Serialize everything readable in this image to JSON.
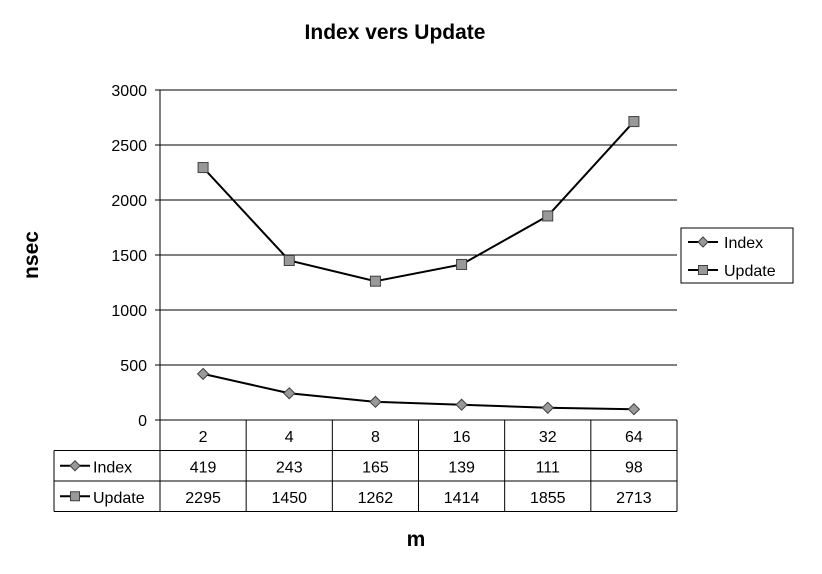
{
  "chart_data": {
    "type": "line",
    "title": "Index vers Update",
    "xlabel": "m",
    "ylabel": "nsec",
    "categories": [
      "2",
      "4",
      "8",
      "16",
      "32",
      "64"
    ],
    "ylim": [
      0,
      3000
    ],
    "yticks": [
      0,
      500,
      1000,
      1500,
      2000,
      2500,
      3000
    ],
    "grid": true,
    "legend_position": "right",
    "data_table": true,
    "series": [
      {
        "name": "Index",
        "marker": "diamond",
        "values": [
          419,
          243,
          165,
          139,
          111,
          98
        ]
      },
      {
        "name": "Update",
        "marker": "square",
        "values": [
          2295,
          1450,
          1262,
          1414,
          1855,
          2713
        ]
      }
    ],
    "colors": {
      "line": "#000000",
      "marker_fill": "#999999",
      "marker_stroke": "#404040",
      "grid": "#000000"
    }
  }
}
